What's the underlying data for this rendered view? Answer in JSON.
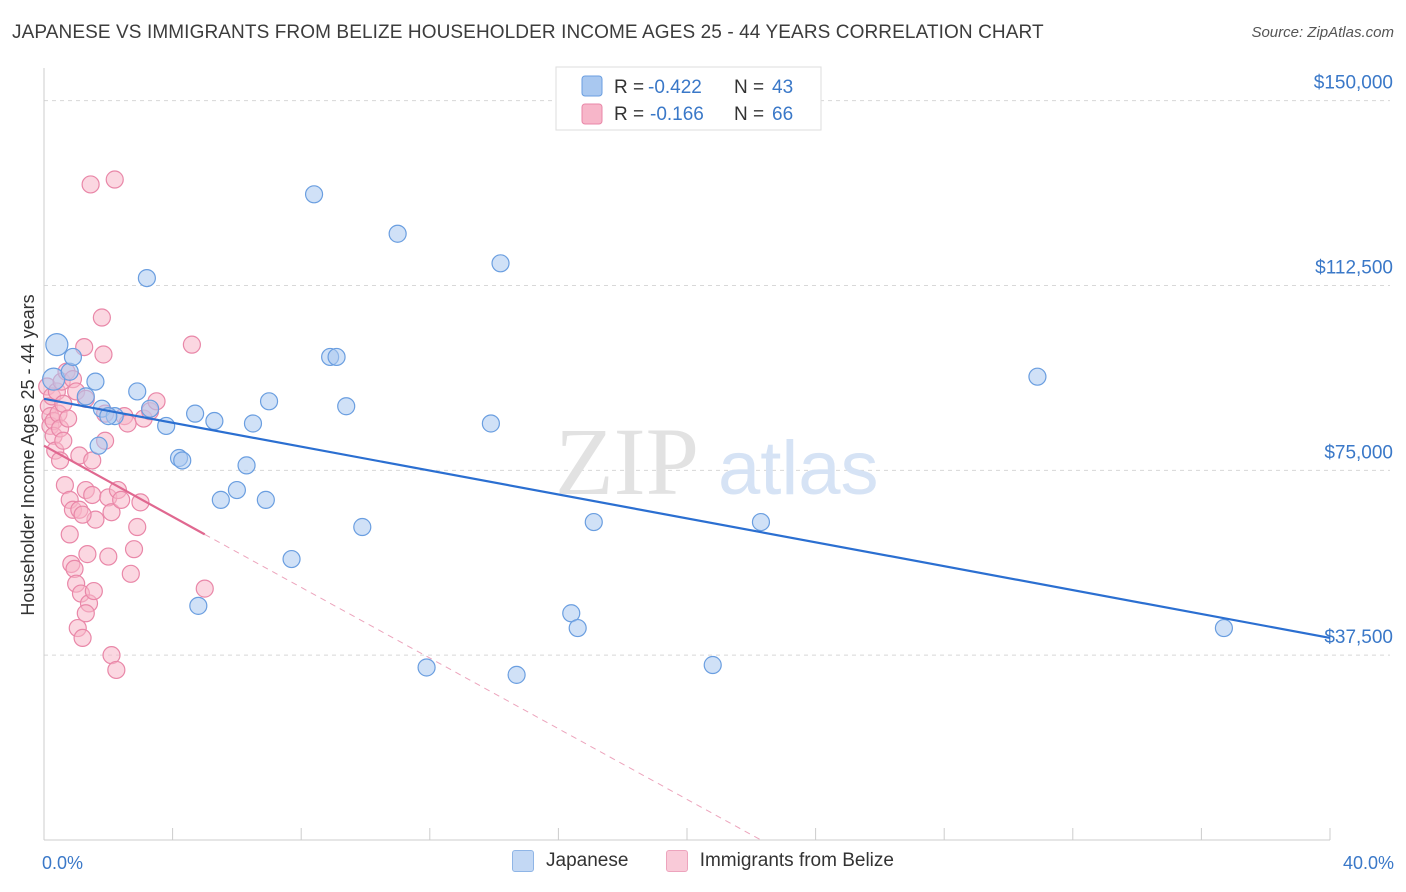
{
  "title": "JAPANESE VS IMMIGRANTS FROM BELIZE HOUSEHOLDER INCOME AGES 25 - 44 YEARS CORRELATION CHART",
  "source": "Source: ZipAtlas.com",
  "watermark": {
    "zip": "ZIP",
    "atlas": "atlas"
  },
  "colors": {
    "blue_fill": "#a9c8f0",
    "blue_stroke": "#6a9ee0",
    "blue_line": "#2b6fd1",
    "pink_fill": "#f7b6c9",
    "pink_stroke": "#e987a8",
    "pink_line": "#e06890",
    "tick_label": "#3a78c8",
    "grid": "#d8d8d8"
  },
  "chart_data": {
    "type": "scatter",
    "title": "JAPANESE VS IMMIGRANTS FROM BELIZE HOUSEHOLDER INCOME AGES 25 - 44 YEARS CORRELATION CHART",
    "xlabel": "",
    "ylabel": "Householder Income Ages 25 - 44 years",
    "xlim": [
      0,
      40
    ],
    "ylim": [
      0,
      155000
    ],
    "x_tick_labels": {
      "min": "0.0%",
      "max": "40.0%"
    },
    "y_ticks": [
      37500,
      75000,
      112500,
      150000
    ],
    "y_tick_labels": [
      "$37,500",
      "$75,000",
      "$112,500",
      "$150,000"
    ],
    "legend_position": "top-center",
    "legend": [
      {
        "r_label": "R =",
        "r_value": "-0.422",
        "n_label": "N =",
        "n_value": "43"
      },
      {
        "r_label": "R =",
        "r_value": "-0.166",
        "n_label": "N =",
        "n_value": "66"
      }
    ],
    "series": [
      {
        "name": "Japanese",
        "trend": {
          "x0": 0.0,
          "y0": 89500,
          "x1": 40.0,
          "y1": 41000
        },
        "points": [
          {
            "x": 0.4,
            "y": 100500,
            "s": "l"
          },
          {
            "x": 0.3,
            "y": 93500,
            "s": "l"
          },
          {
            "x": 0.8,
            "y": 95000
          },
          {
            "x": 0.9,
            "y": 98000
          },
          {
            "x": 1.6,
            "y": 93000
          },
          {
            "x": 1.3,
            "y": 90000
          },
          {
            "x": 1.8,
            "y": 87500
          },
          {
            "x": 2.2,
            "y": 86000
          },
          {
            "x": 1.7,
            "y": 80000
          },
          {
            "x": 2.0,
            "y": 86000
          },
          {
            "x": 2.9,
            "y": 91000
          },
          {
            "x": 3.3,
            "y": 87500
          },
          {
            "x": 3.8,
            "y": 84000
          },
          {
            "x": 4.2,
            "y": 77500
          },
          {
            "x": 4.3,
            "y": 77000
          },
          {
            "x": 4.7,
            "y": 86500
          },
          {
            "x": 5.3,
            "y": 85000
          },
          {
            "x": 5.5,
            "y": 69000
          },
          {
            "x": 6.0,
            "y": 71000
          },
          {
            "x": 6.3,
            "y": 76000
          },
          {
            "x": 6.5,
            "y": 84500
          },
          {
            "x": 7.0,
            "y": 89000
          },
          {
            "x": 6.9,
            "y": 69000
          },
          {
            "x": 4.8,
            "y": 47500
          },
          {
            "x": 3.2,
            "y": 114000
          },
          {
            "x": 8.4,
            "y": 131000
          },
          {
            "x": 7.7,
            "y": 57000
          },
          {
            "x": 8.9,
            "y": 98000
          },
          {
            "x": 9.1,
            "y": 98000
          },
          {
            "x": 9.4,
            "y": 88000
          },
          {
            "x": 9.9,
            "y": 63500
          },
          {
            "x": 11.0,
            "y": 123000
          },
          {
            "x": 11.9,
            "y": 35000
          },
          {
            "x": 13.9,
            "y": 84500
          },
          {
            "x": 14.2,
            "y": 117000
          },
          {
            "x": 14.7,
            "y": 33500
          },
          {
            "x": 16.4,
            "y": 46000
          },
          {
            "x": 16.6,
            "y": 43000
          },
          {
            "x": 17.1,
            "y": 64500
          },
          {
            "x": 20.8,
            "y": 35500
          },
          {
            "x": 22.3,
            "y": 64500
          },
          {
            "x": 30.9,
            "y": 94000
          },
          {
            "x": 36.7,
            "y": 43000
          }
        ]
      },
      {
        "name": "Immigrants from Belize",
        "trend": {
          "x0": 0.0,
          "y0": 80000,
          "x1": 5.0,
          "y1": 62000
        },
        "trend_ext": {
          "x0": 5.0,
          "y0": 62000,
          "x1": 22.3,
          "y1": 0
        },
        "points": [
          {
            "x": 0.1,
            "y": 92000
          },
          {
            "x": 0.15,
            "y": 88000
          },
          {
            "x": 0.2,
            "y": 86000
          },
          {
            "x": 0.2,
            "y": 84000
          },
          {
            "x": 0.25,
            "y": 90000
          },
          {
            "x": 0.3,
            "y": 85000
          },
          {
            "x": 0.3,
            "y": 82000
          },
          {
            "x": 0.35,
            "y": 79000
          },
          {
            "x": 0.4,
            "y": 91000
          },
          {
            "x": 0.45,
            "y": 86500
          },
          {
            "x": 0.5,
            "y": 83500
          },
          {
            "x": 0.5,
            "y": 77000
          },
          {
            "x": 0.55,
            "y": 93000
          },
          {
            "x": 0.6,
            "y": 88500
          },
          {
            "x": 0.6,
            "y": 81000
          },
          {
            "x": 0.65,
            "y": 72000
          },
          {
            "x": 0.7,
            "y": 95000
          },
          {
            "x": 0.75,
            "y": 85500
          },
          {
            "x": 0.8,
            "y": 69000
          },
          {
            "x": 0.8,
            "y": 62000
          },
          {
            "x": 0.85,
            "y": 56000
          },
          {
            "x": 0.9,
            "y": 93500
          },
          {
            "x": 0.9,
            "y": 67000
          },
          {
            "x": 0.95,
            "y": 55000
          },
          {
            "x": 1.0,
            "y": 91000
          },
          {
            "x": 1.0,
            "y": 52000
          },
          {
            "x": 1.05,
            "y": 43000
          },
          {
            "x": 1.1,
            "y": 78000
          },
          {
            "x": 1.1,
            "y": 67000
          },
          {
            "x": 1.15,
            "y": 50000
          },
          {
            "x": 1.2,
            "y": 41000
          },
          {
            "x": 1.25,
            "y": 100000
          },
          {
            "x": 1.3,
            "y": 89500
          },
          {
            "x": 1.3,
            "y": 71000
          },
          {
            "x": 1.35,
            "y": 58000
          },
          {
            "x": 1.4,
            "y": 48000
          },
          {
            "x": 1.45,
            "y": 133000
          },
          {
            "x": 1.5,
            "y": 77000
          },
          {
            "x": 1.5,
            "y": 70000
          },
          {
            "x": 1.55,
            "y": 50500
          },
          {
            "x": 1.6,
            "y": 65000
          },
          {
            "x": 1.3,
            "y": 46000
          },
          {
            "x": 1.8,
            "y": 106000
          },
          {
            "x": 1.85,
            "y": 98500
          },
          {
            "x": 1.9,
            "y": 86500
          },
          {
            "x": 1.9,
            "y": 81000
          },
          {
            "x": 2.0,
            "y": 69500
          },
          {
            "x": 2.0,
            "y": 57500
          },
          {
            "x": 2.1,
            "y": 37500
          },
          {
            "x": 2.1,
            "y": 66500
          },
          {
            "x": 2.2,
            "y": 134000
          },
          {
            "x": 2.25,
            "y": 34500
          },
          {
            "x": 2.3,
            "y": 71000
          },
          {
            "x": 2.4,
            "y": 69000
          },
          {
            "x": 2.5,
            "y": 86000
          },
          {
            "x": 2.6,
            "y": 84500
          },
          {
            "x": 2.7,
            "y": 54000
          },
          {
            "x": 2.8,
            "y": 59000
          },
          {
            "x": 2.9,
            "y": 63500
          },
          {
            "x": 3.0,
            "y": 68500
          },
          {
            "x": 3.1,
            "y": 85500
          },
          {
            "x": 3.3,
            "y": 87000
          },
          {
            "x": 3.5,
            "y": 89000
          },
          {
            "x": 1.2,
            "y": 66000
          },
          {
            "x": 4.6,
            "y": 100500
          },
          {
            "x": 5.0,
            "y": 51000
          }
        ]
      }
    ]
  }
}
